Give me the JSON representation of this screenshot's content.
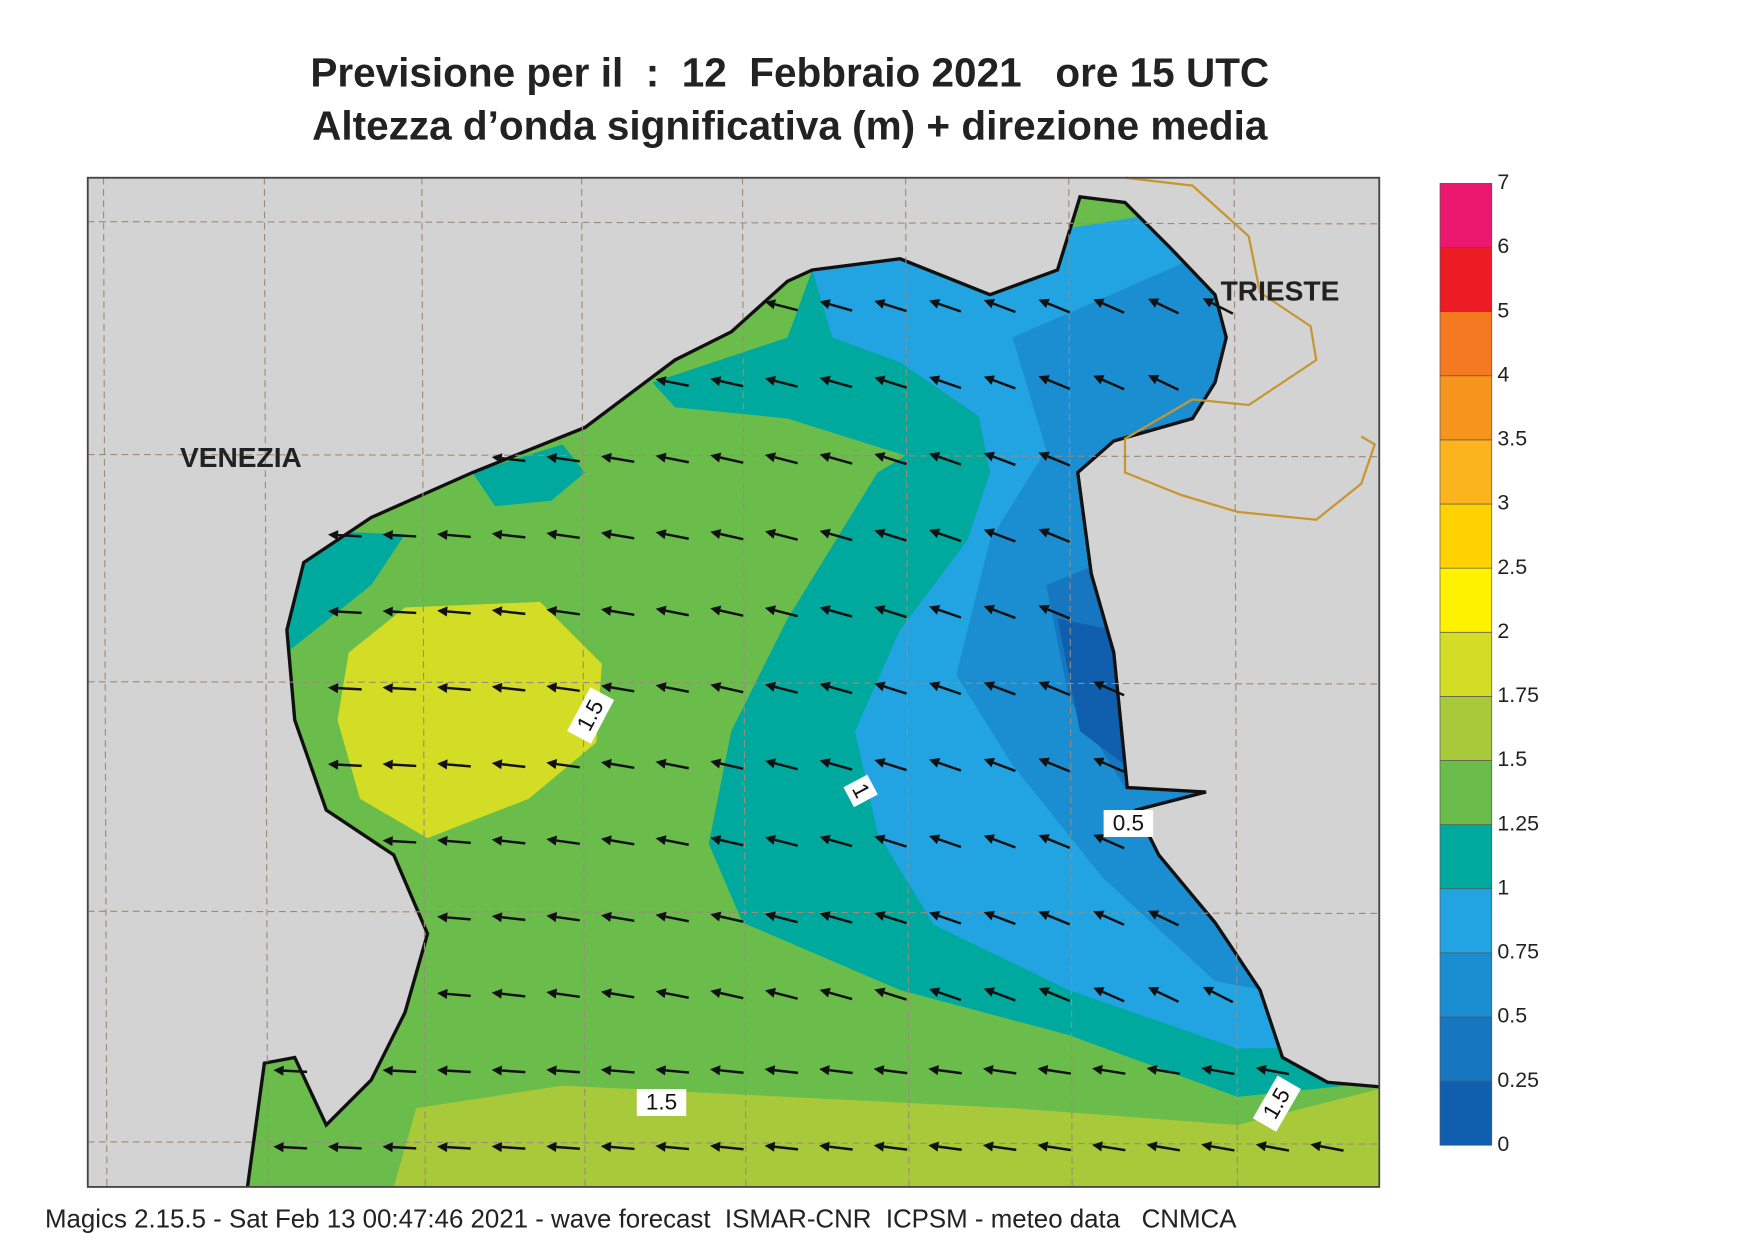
{
  "header": {
    "title_line1": "Previsione per il  :  12  Febbraio 2021   ore 15 UTC",
    "title_line2": "Altezza d’onda significativa (m) + direzione media"
  },
  "places": [
    "VENEZIA",
    "TRIESTE"
  ],
  "contour_labels": [
    "1.5",
    "1",
    "0.5",
    "1.5",
    "1.5"
  ],
  "legend": {
    "levels": [
      0,
      0.25,
      0.5,
      0.75,
      1,
      1.25,
      1.5,
      1.75,
      2,
      2.5,
      3,
      3.5,
      4,
      5,
      6,
      7
    ],
    "colors": [
      "#0f5fae",
      "#1776c0",
      "#1b8ed2",
      "#22a4e2",
      "#00a99d",
      "#6abd4b",
      "#a8c93a",
      "#d4dd26",
      "#fff200",
      "#ffd200",
      "#fbb41d",
      "#f7941d",
      "#f47920",
      "#ed1c24",
      "#ec1870"
    ]
  },
  "footer": "Magics 2.15.5 - Sat Feb 13 00:47:46 2021 - wave forecast  ISMAR-CNR  ICPSM - meteo data   CNMCA"
}
